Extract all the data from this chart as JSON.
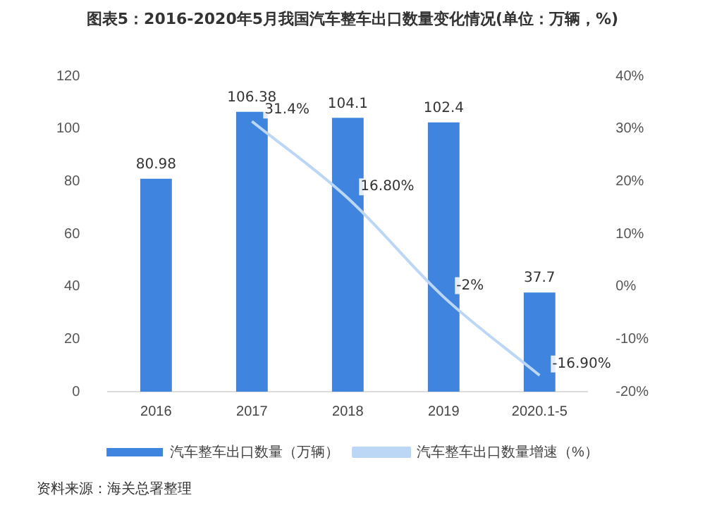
{
  "chart_data": {
    "type": "bar",
    "title": "图表5：2016-2020年5月我国汽车整车出口数量变化情况(单位：万辆，%)",
    "categories": [
      "2016",
      "2017",
      "2018",
      "2019",
      "2020.1-5"
    ],
    "series": [
      {
        "name": "汽车整车出口数量（万辆）",
        "color": "#3f85e0",
        "values": [
          80.98,
          106.38,
          104.1,
          102.4,
          37.7
        ],
        "value_labels": [
          "80.98",
          "106.38",
          "104.1",
          "102.4",
          "37.7"
        ]
      },
      {
        "name": "汽车整车出口数量增速（%）",
        "type": "line",
        "axis": "y2",
        "color": "#bcd6f6",
        "values": [
          null,
          31.4,
          16.8,
          -2,
          -16.9
        ],
        "value_labels": [
          null,
          "31.4%",
          "16.80%",
          "-2%",
          "-16.90%"
        ]
      }
    ],
    "ylim": [
      0,
      120
    ],
    "yticks": [
      0,
      20,
      40,
      60,
      80,
      100,
      120
    ],
    "y2lim": [
      -20,
      40
    ],
    "y2ticks": [
      {
        "value": -20,
        "label": "-20%"
      },
      {
        "value": -10,
        "label": "-10%"
      },
      {
        "value": 0,
        "label": "0%"
      },
      {
        "value": 10,
        "label": "10%"
      },
      {
        "value": 20,
        "label": "20%"
      },
      {
        "value": 30,
        "label": "30%"
      },
      {
        "value": 40,
        "label": "40%"
      }
    ],
    "legend": "bottom",
    "grid": false,
    "marker": "none",
    "annotations": [
      "资料来源：海关总署整理"
    ]
  }
}
